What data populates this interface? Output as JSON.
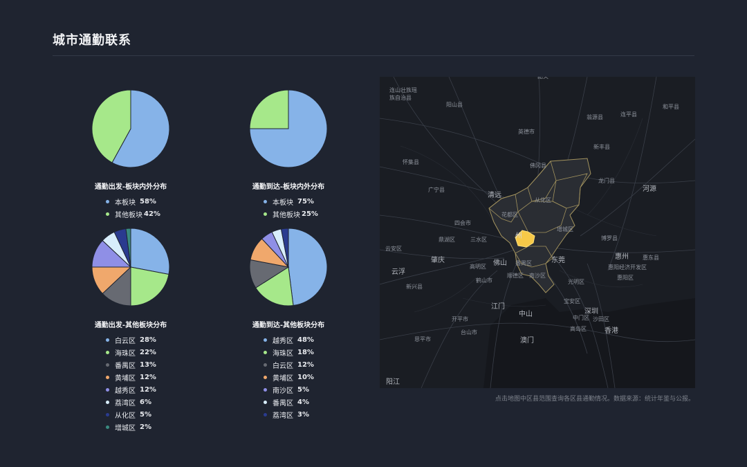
{
  "page": {
    "title": "城市通勤联系"
  },
  "pies": [
    {
      "caption": "通勤出发-板块内外分布",
      "items": [
        {
          "name": "本板块",
          "pct": "58%",
          "value": 58,
          "color": "#86b3e8"
        },
        {
          "name": "其他板块",
          "pct": "42%",
          "value": 42,
          "color": "#a6e88a"
        }
      ]
    },
    {
      "caption": "通勤到达-板块内外分布",
      "items": [
        {
          "name": "本板块",
          "pct": "75%",
          "value": 75,
          "color": "#86b3e8"
        },
        {
          "name": "其他板块",
          "pct": "25%",
          "value": 25,
          "color": "#a6e88a"
        }
      ]
    },
    {
      "caption": "通勤出发-其他板块分布",
      "items": [
        {
          "name": "白云区",
          "pct": "28%",
          "value": 28,
          "color": "#86b3e8"
        },
        {
          "name": "海珠区",
          "pct": "22%",
          "value": 22,
          "color": "#a6e88a"
        },
        {
          "name": "番禺区",
          "pct": "13%",
          "value": 13,
          "color": "#676a72"
        },
        {
          "name": "黄埔区",
          "pct": "12%",
          "value": 12,
          "color": "#f0a86c"
        },
        {
          "name": "越秀区",
          "pct": "12%",
          "value": 12,
          "color": "#8f8fe6"
        },
        {
          "name": "荔湾区",
          "pct": "6%",
          "value": 6,
          "color": "#d8eefc"
        },
        {
          "name": "从化区",
          "pct": "5%",
          "value": 5,
          "color": "#2a3b8f"
        },
        {
          "name": "增城区",
          "pct": "2%",
          "value": 2,
          "color": "#3a8a80"
        }
      ]
    },
    {
      "caption": "通勤到达-其他板块分布",
      "items": [
        {
          "name": "越秀区",
          "pct": "48%",
          "value": 48,
          "color": "#86b3e8"
        },
        {
          "name": "海珠区",
          "pct": "18%",
          "value": 18,
          "color": "#a6e88a"
        },
        {
          "name": "白云区",
          "pct": "12%",
          "value": 12,
          "color": "#676a72"
        },
        {
          "name": "黄埔区",
          "pct": "10%",
          "value": 10,
          "color": "#f0a86c"
        },
        {
          "name": "南沙区",
          "pct": "5%",
          "value": 5,
          "color": "#8f8fe6"
        },
        {
          "name": "番禺区",
          "pct": "4%",
          "value": 4,
          "color": "#d8eefc"
        },
        {
          "name": "荔湾区",
          "pct": "3%",
          "value": 3,
          "color": "#2a3b8f"
        }
      ]
    }
  ],
  "map": {
    "highlight_color": "#f7c948",
    "labels": {
      "lianshan": "连山壮族瑶族自治县",
      "yangshan": "阳山县",
      "wengyuan": "翁源县",
      "lianping": "连平县",
      "heping": "和平县",
      "yingde": "英德市",
      "xinfeng": "新丰县",
      "huaiji": "怀集县",
      "fogang": "佛冈县",
      "guangning": "广宁县",
      "longmen": "龙门县",
      "heyuan": "河源",
      "qingyuan": "清远",
      "conghua": "从化区",
      "huadu": "花都区",
      "sihui": "四会市",
      "zengcheng": "增城区",
      "dinghu": "鼎湖区",
      "sanshui": "三水区",
      "guangzhou": "州",
      "boluo": "博罗县",
      "yunan": "云安区",
      "zhaoqing": "肇庆",
      "foshan": "佛山",
      "panyu": "番禺区",
      "dongguan": "东莞",
      "huizhou": "惠州",
      "huidong": "惠东县",
      "huizhou_dev": "惠阳经济开发区",
      "yunfu": "云浮",
      "gaoming": "高明区",
      "shunde": "顺德区",
      "nansha": "南沙区",
      "huiyang": "惠阳区",
      "xinxing": "新兴县",
      "heshan": "鹤山市",
      "guangming": "光明区",
      "baoan": "宝安区",
      "jiangmen": "江门",
      "shenzhen": "深圳",
      "zhongshan": "中山",
      "zhongmen": "中门区",
      "shatian": "沙田区",
      "kaiping": "开平市",
      "gaoping": "高岛区",
      "xianggang": "香港",
      "taishan": "台山市",
      "enping": "恩平市",
      "aomen": "澳门",
      "yangjiang": "阳江",
      "shaoguan": "韶关"
    }
  },
  "footer": {
    "note": "点击地图中区县范围查询各区县通勤情况。数据来源：统计年鉴与公报。"
  }
}
